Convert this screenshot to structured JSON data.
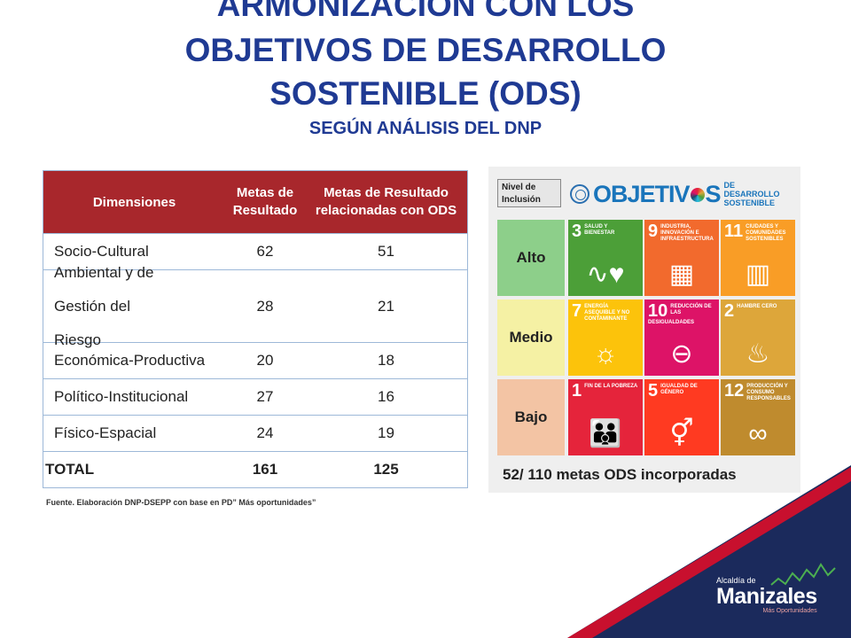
{
  "title": {
    "line1": "ARMONIZACIÓN CON LOS",
    "line2": "OBJETIVOS DE DESARROLLO",
    "line3": "SOSTENIBLE  (ODS)",
    "subtitle": "SEGÚN ANÁLISIS DEL DNP"
  },
  "table": {
    "headers": [
      "Dimensiones",
      "Metas de Resultado",
      "Metas de  Resultado relacionadas con ODS"
    ],
    "rows": [
      {
        "dim": "Socio-Cultural",
        "metas": "62",
        "ods": "51"
      },
      {
        "dim": "Ambiental y de Gestión  del Riesgo",
        "metas": "28",
        "ods": "21"
      },
      {
        "dim": "Económica-Productiva",
        "metas": "20",
        "ods": "18"
      },
      {
        "dim": "Político-Institucional",
        "metas": "27",
        "ods": "16"
      },
      {
        "dim": "Físico-Espacial",
        "metas": "24",
        "ods": "19"
      }
    ],
    "total": {
      "dim": "TOTAL",
      "metas": "161",
      "ods": "125"
    },
    "source": "Fuente.  Elaboración DNP-DSEPP con base en PD” Más oportunidades”"
  },
  "ods_panel": {
    "nivel_label": "Nivel de Inclusión",
    "logo_text_a": "OBJETIV",
    "logo_text_b": "S",
    "logo_side": "DE DESARROLLO SOSTENIBLE",
    "levels": [
      "Alto",
      "Medio",
      "Bajo"
    ],
    "tiles": [
      {
        "num": "3",
        "label": "SALUD Y BIENESTAR",
        "color": "#4c9f38",
        "icon": "heartbeat-icon",
        "glyph": "∿♥"
      },
      {
        "num": "9",
        "label": "INDUSTRIA, INNOVACIÓN E INFRAESTRUCTURA",
        "color": "#f26a2d",
        "icon": "cubes-icon",
        "glyph": "▦"
      },
      {
        "num": "11",
        "label": "CIUDADES Y COMUNIDADES SOSTENIBLES",
        "color": "#f99d26",
        "icon": "city-icon",
        "glyph": "▥"
      },
      {
        "num": "7",
        "label": "ENERGÍA ASEQUIBLE Y NO CONTAMINANTE",
        "color": "#fcc30b",
        "icon": "sun-power-icon",
        "glyph": "☼"
      },
      {
        "num": "10",
        "label": "REDUCCIÓN DE LAS DESIGUALDADES",
        "color": "#dd1367",
        "icon": "equality-icon",
        "glyph": "⊖"
      },
      {
        "num": "2",
        "label": "HAMBRE CERO",
        "color": "#dda63a",
        "icon": "bowl-icon",
        "glyph": "♨"
      },
      {
        "num": "1",
        "label": "FIN DE LA POBREZA",
        "color": "#e5243b",
        "icon": "family-icon",
        "glyph": "👪"
      },
      {
        "num": "5",
        "label": "IGUALDAD DE GÉNERO",
        "color": "#ff3a21",
        "icon": "gender-icon",
        "glyph": "⚥"
      },
      {
        "num": "12",
        "label": "PRODUCCIÓN Y CONSUMO RESPONSABLES",
        "color": "#bf8b2e",
        "icon": "infinity-icon",
        "glyph": "∞"
      }
    ],
    "footer": "52/ 110 metas ODS incorporadas"
  },
  "brand": {
    "small": "Alcaldía de",
    "name": "Manizales",
    "tagline": "Más Oportunidades"
  },
  "colors": {
    "title_blue": "#1f3a93",
    "table_header_red": "#a8272c",
    "corner_navy": "#1b2a5c",
    "corner_red": "#c8102e"
  }
}
